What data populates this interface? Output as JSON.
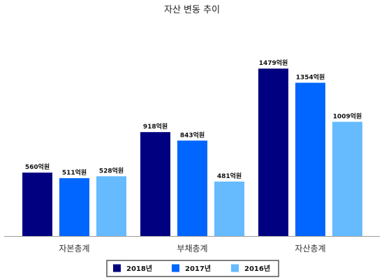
{
  "chart_data": {
    "type": "bar",
    "title": "자산 변동 추이",
    "categories": [
      "자본총계",
      "부채총계",
      "자산총계"
    ],
    "series": [
      {
        "name": "2018년",
        "color": "#000080",
        "values": [
          560,
          918,
          1479
        ],
        "labels": [
          "560억원",
          "918억원",
          "1479억원"
        ]
      },
      {
        "name": "2017년",
        "color": "#0066ff",
        "values": [
          511,
          843,
          1354
        ],
        "labels": [
          "511억원",
          "843억원",
          "1354억원"
        ]
      },
      {
        "name": "2016년",
        "color": "#66bbff",
        "values": [
          528,
          481,
          1009
        ],
        "labels": [
          "528억원",
          "481억원",
          "1009억원"
        ]
      }
    ],
    "ylim": [
      0,
      1900
    ],
    "grid": false,
    "legend_position": "bottom"
  }
}
